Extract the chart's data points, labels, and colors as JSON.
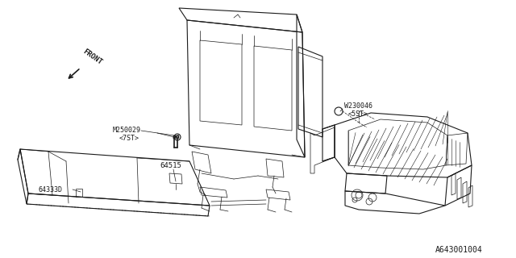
{
  "bg_color": "#ffffff",
  "line_color": "#1a1a1a",
  "title_code": "A643001004",
  "labels": {
    "front": "FRONT",
    "part1": "M250029",
    "part1b": "<7ST>",
    "part2": "64515",
    "part3": "64333D",
    "part4": "W230046",
    "part4b": "<5ST>"
  },
  "figsize": [
    6.4,
    3.2
  ],
  "dpi": 100
}
